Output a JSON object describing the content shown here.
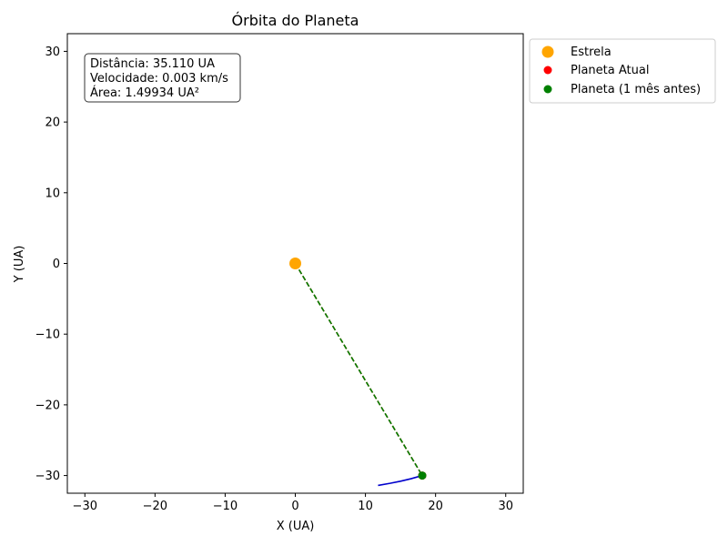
{
  "chart_data": {
    "type": "scatter",
    "title": "Órbita do Planeta",
    "xlabel": "X (UA)",
    "ylabel": "Y (UA)",
    "xlim": [
      -32.5,
      32.5
    ],
    "ylim": [
      -32.5,
      32.5
    ],
    "xticks": [
      -30,
      -20,
      -10,
      0,
      10,
      20,
      30
    ],
    "yticks": [
      -30,
      -20,
      -10,
      0,
      10,
      20,
      30
    ],
    "xtick_labels": [
      "−30",
      "−20",
      "−10",
      "0",
      "10",
      "20",
      "30"
    ],
    "ytick_labels": [
      "−30",
      "−20",
      "−10",
      "0",
      "10",
      "20",
      "30"
    ],
    "grid": false,
    "legend_position": "outside-upper-right",
    "info_box": {
      "lines": [
        "Distância: 35.110 UA",
        "Velocidade: 0.003 km/s",
        "Área: 1.49934 UA²"
      ]
    },
    "orbit_path": {
      "color": "#0000cc",
      "points": [
        [
          11.8,
          -31.4
        ],
        [
          13.5,
          -31.1
        ],
        [
          15.0,
          -30.8
        ],
        [
          16.5,
          -30.45
        ],
        [
          18.1,
          -30.0
        ]
      ]
    },
    "radius_lines": [
      {
        "from": [
          0,
          0
        ],
        "to": [
          18.1,
          -30.0
        ],
        "color": "#ff0000",
        "dashed": true
      },
      {
        "from": [
          0,
          0
        ],
        "to": [
          18.1,
          -30.0
        ],
        "color": "#008000",
        "dashed": true
      }
    ],
    "series": [
      {
        "name": "Estrela",
        "color": "#ffa500",
        "marker_size": "large",
        "points": [
          [
            0,
            0
          ]
        ]
      },
      {
        "name": "Planeta Atual",
        "color": "#ff0000",
        "marker_size": "small",
        "points": [
          [
            18.1,
            -30.0
          ]
        ]
      },
      {
        "name": "Planeta (1 mês antes)",
        "color": "#008000",
        "marker_size": "small",
        "points": [
          [
            18.1,
            -30.0
          ]
        ]
      }
    ]
  }
}
